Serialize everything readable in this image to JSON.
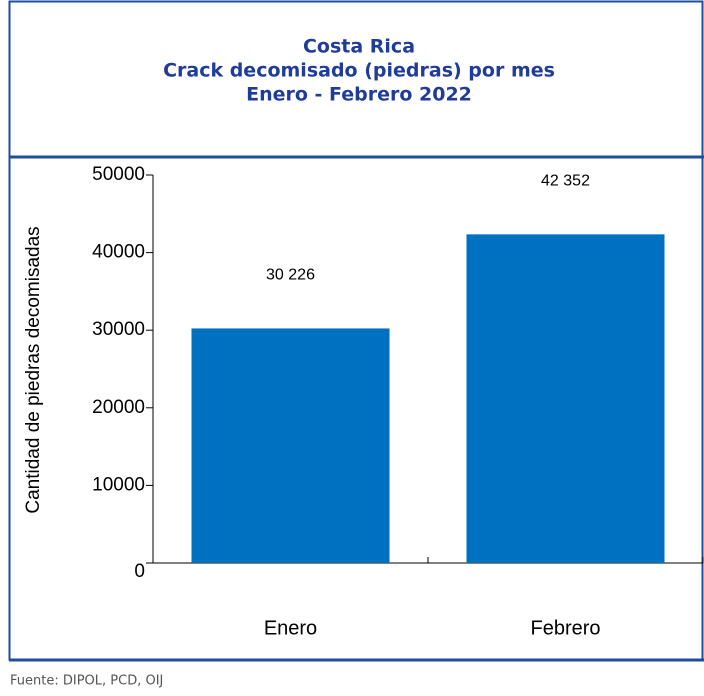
{
  "chart_data": {
    "type": "bar",
    "title_lines": [
      "Costa Rica",
      "Crack decomisado (piedras) por mes",
      "Enero - Febrero 2022"
    ],
    "y_label": "Cantidad de piedras decomisadas",
    "categories": [
      "Enero",
      "Febrero"
    ],
    "values": [
      30226,
      42352
    ],
    "value_labels": [
      "30 226",
      "42 352"
    ],
    "color": "#0070c0",
    "ylim": [
      0,
      50000
    ],
    "yticks": [
      0,
      10000,
      20000,
      30000,
      40000,
      50000
    ],
    "source": "Fuente: DIPOL, PCD, OIJ"
  }
}
